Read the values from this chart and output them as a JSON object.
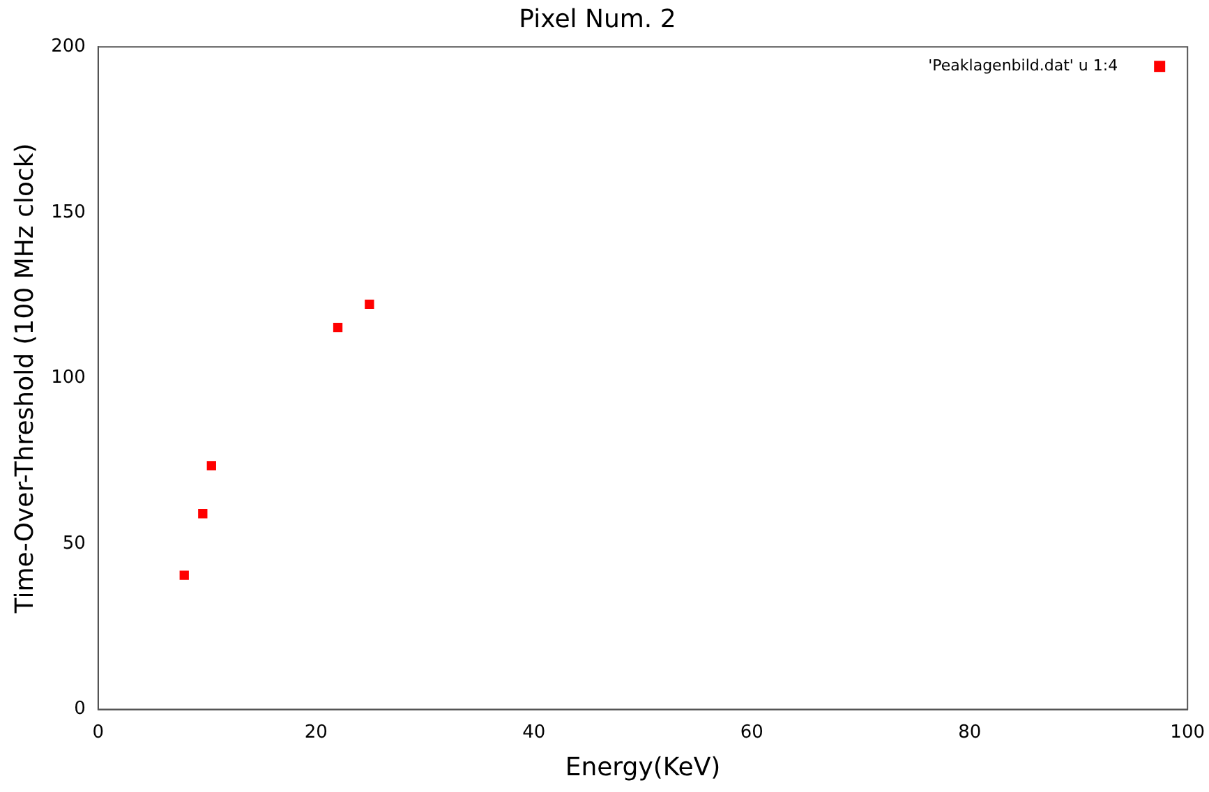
{
  "chart_data": {
    "type": "scatter",
    "title": "Pixel Num. 2",
    "xlabel": "Energy(KeV)",
    "ylabel": "Time-Over-Threshold (100 MHz clock)",
    "series": [
      {
        "name": "'Peaklagenbild.dat' u 1:4",
        "color": "#ff0000",
        "x": [
          7.9,
          9.6,
          10.4,
          22.0,
          24.9
        ],
        "values": [
          40.5,
          59.1,
          73.6,
          115.3,
          122.3
        ]
      }
    ],
    "xlim": [
      0,
      100
    ],
    "xticks": [
      0,
      20,
      40,
      60,
      80,
      100
    ],
    "ylim": [
      0,
      200
    ],
    "yticks": [
      0,
      50,
      100,
      150,
      200
    ],
    "grid": false,
    "legend": "top right",
    "marker": "square"
  }
}
